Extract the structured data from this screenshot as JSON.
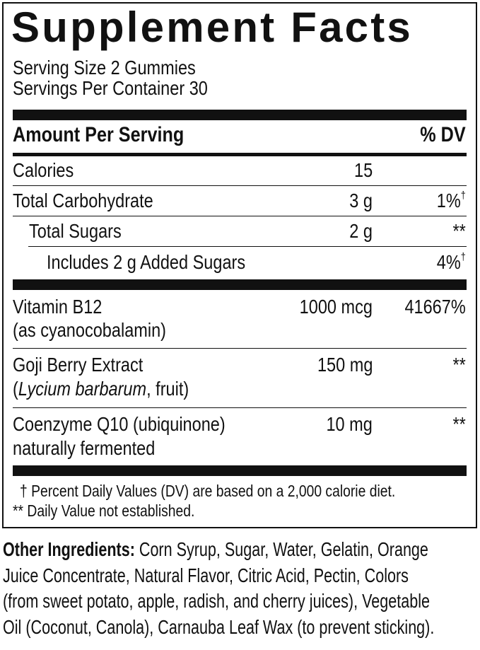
{
  "title": "Supplement Facts",
  "serving_size": "Serving Size 2 Gummies",
  "servings_per_container": "Servings Per Container 30",
  "header": {
    "amount": "Amount Per Serving",
    "dv": "% DV"
  },
  "rows": [
    {
      "name": "Calories",
      "amount": "15",
      "dv": ""
    },
    {
      "name": "Total Carbohydrate",
      "amount": "3 g",
      "dv": "1%",
      "dv_mark": "†"
    },
    {
      "name": "Total Sugars",
      "amount": "2 g",
      "dv": "**"
    },
    {
      "name": "Includes 2 g Added Sugars",
      "amount": "",
      "dv": "4%",
      "dv_mark": "†"
    },
    {
      "name": "Vitamin B12",
      "sub": "(as cyanocobalamin)",
      "amount": "1000 mcg",
      "dv": "41667%"
    },
    {
      "name": "Goji Berry Extract",
      "sub_italic": "Lycium barbarum",
      "sub_rest": ", fruit)",
      "sub_open": "(",
      "amount": "150 mg",
      "dv": "**"
    },
    {
      "name": "Coenzyme Q10 (ubiquinone)",
      "sub": "naturally fermented",
      "amount": "10 mg",
      "dv": "**"
    }
  ],
  "footnotes": [
    "† Percent Daily Values (DV) are based on a 2,000 calorie diet.",
    "** Daily Value not established."
  ],
  "other_ingredients": {
    "label": "Other Ingredients:",
    "lines": [
      " Corn Syrup, Sugar, Water, Gelatin, Orange",
      "Juice Concentrate, Natural Flavor, Citric Acid, Pectin, Colors",
      "(from sweet potato, apple, radish, and cherry juices), Vegetable",
      "Oil (Coconut, Canola), Carnauba Leaf Wax (to prevent sticking)."
    ]
  }
}
